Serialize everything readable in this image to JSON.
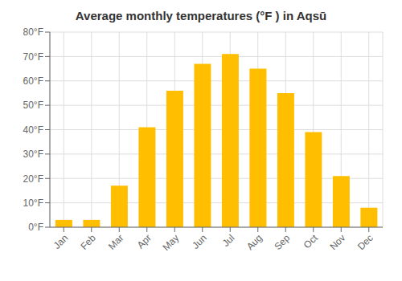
{
  "chart_data": {
    "type": "bar",
    "title": "Average monthly temperatures (°F ) in Aqsū",
    "categories": [
      "Jan",
      "Feb",
      "Mar",
      "Apr",
      "May",
      "Jun",
      "Jul",
      "Aug",
      "Sep",
      "Oct",
      "Nov",
      "Dec"
    ],
    "values": [
      3,
      3,
      17,
      41,
      56,
      67,
      71,
      65,
      55,
      39,
      21,
      8
    ],
    "color": "#FFBF00",
    "ylim": [
      0,
      80
    ],
    "yticks": [
      {
        "value": 0,
        "label": "0°F"
      },
      {
        "value": 10,
        "label": "10°F"
      },
      {
        "value": 20,
        "label": "20°F"
      },
      {
        "value": 30,
        "label": "30°F"
      },
      {
        "value": 40,
        "label": "40°F"
      },
      {
        "value": 50,
        "label": "50°F"
      },
      {
        "value": 60,
        "label": "60°F"
      },
      {
        "value": 70,
        "label": "70°F"
      },
      {
        "value": 80,
        "label": "80°F"
      }
    ],
    "grid": true
  }
}
